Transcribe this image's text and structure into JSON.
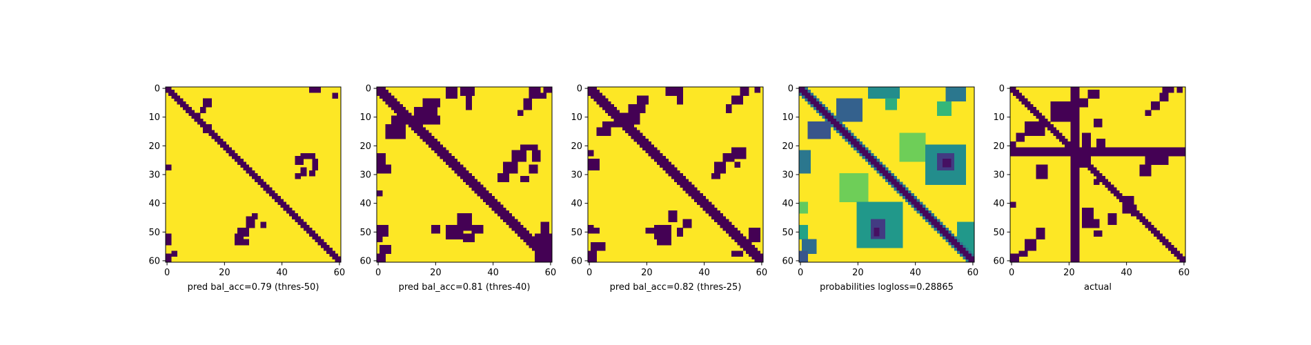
{
  "chart_data": [
    {
      "type": "heatmap",
      "style": "binary",
      "title": "",
      "xlabel": "pred bal_acc=0.79 (thres-50)",
      "ylabel": "",
      "x_ticks": [
        0,
        20,
        40,
        60
      ],
      "y_ticks": [
        0,
        10,
        20,
        30,
        40,
        50,
        60
      ],
      "xlim": [
        0,
        60
      ],
      "ylim": [
        60,
        0
      ],
      "grid": false,
      "diagonal_band_half_width": 1.4,
      "colors": {
        "low": "#440154",
        "high": "#fde725"
      },
      "regions": [
        {
          "x0": 14,
          "y0": 13,
          "x1": 16,
          "y1": 16
        },
        {
          "x0": 13,
          "y0": 15,
          "x1": 14,
          "y1": 16
        },
        {
          "x0": 13,
          "y0": 4,
          "x1": 16,
          "y1": 7
        },
        {
          "x0": 12,
          "y0": 7,
          "x1": 14,
          "y1": 9
        },
        {
          "x0": 11,
          "y0": 9,
          "x1": 12,
          "y1": 10
        },
        {
          "x0": 50,
          "y0": 0,
          "x1": 54,
          "y1": 2
        },
        {
          "x0": 58,
          "y0": 2,
          "x1": 60,
          "y1": 4
        },
        {
          "x0": 0,
          "y0": 27,
          "x1": 2,
          "y1": 29
        },
        {
          "x0": 0,
          "y0": 51,
          "x1": 2,
          "y1": 55
        },
        {
          "x0": 2,
          "y0": 57,
          "x1": 4,
          "y1": 59
        },
        {
          "x0": 0,
          "y0": 58,
          "x1": 2,
          "y1": 61
        },
        {
          "x0": 47,
          "y0": 23,
          "x1": 52,
          "y1": 25
        },
        {
          "x0": 45,
          "y0": 24,
          "x1": 48,
          "y1": 27
        },
        {
          "x0": 51,
          "y0": 25,
          "x1": 53,
          "y1": 29
        },
        {
          "x0": 50,
          "y0": 29,
          "x1": 52,
          "y1": 31
        },
        {
          "x0": 47,
          "y0": 28,
          "x1": 49,
          "y1": 31
        },
        {
          "x0": 45,
          "y0": 30,
          "x1": 47,
          "y1": 32
        },
        {
          "x0": 25,
          "y0": 49,
          "x1": 29,
          "y1": 52
        },
        {
          "x0": 24,
          "y0": 51,
          "x1": 27,
          "y1": 53
        },
        {
          "x0": 28,
          "y0": 45,
          "x1": 31,
          "y1": 49
        },
        {
          "x0": 30,
          "y0": 44,
          "x1": 32,
          "y1": 46
        },
        {
          "x0": 24,
          "y0": 53,
          "x1": 29,
          "y1": 55
        },
        {
          "x0": 33,
          "y0": 47,
          "x1": 35,
          "y1": 49
        }
      ]
    },
    {
      "type": "heatmap",
      "style": "binary",
      "title": "",
      "xlabel": "pred bal_acc=0.81 (thres-40)",
      "ylabel": "",
      "x_ticks": [
        0,
        20,
        40,
        60
      ],
      "y_ticks": [
        0,
        10,
        20,
        30,
        40,
        50,
        60
      ],
      "xlim": [
        0,
        60
      ],
      "ylim": [
        60,
        0
      ],
      "grid": false,
      "diagonal_band_half_width": 2.0,
      "colors": {
        "low": "#440154",
        "high": "#fde725"
      },
      "regions": [
        {
          "x0": 5,
          "y0": 10,
          "x1": 22,
          "y1": 13
        },
        {
          "x0": 13,
          "y0": 7,
          "x1": 21,
          "y1": 10
        },
        {
          "x0": 16,
          "y0": 4,
          "x1": 22,
          "y1": 7
        },
        {
          "x0": 3,
          "y0": 13,
          "x1": 10,
          "y1": 18
        },
        {
          "x0": 0,
          "y0": 23,
          "x1": 3,
          "y1": 27
        },
        {
          "x0": 0,
          "y0": 27,
          "x1": 5,
          "y1": 30
        },
        {
          "x0": 0,
          "y0": 36,
          "x1": 2,
          "y1": 38
        },
        {
          "x0": 0,
          "y0": 48,
          "x1": 4,
          "y1": 52
        },
        {
          "x0": 0,
          "y0": 52,
          "x1": 2,
          "y1": 54
        },
        {
          "x0": 1,
          "y0": 55,
          "x1": 5,
          "y1": 58
        },
        {
          "x0": 0,
          "y0": 58,
          "x1": 3,
          "y1": 61
        },
        {
          "x0": 24,
          "y0": 0,
          "x1": 28,
          "y1": 4
        },
        {
          "x0": 29,
          "y0": 0,
          "x1": 34,
          "y1": 3
        },
        {
          "x0": 31,
          "y0": 3,
          "x1": 33,
          "y1": 8
        },
        {
          "x0": 53,
          "y0": 0,
          "x1": 57,
          "y1": 4
        },
        {
          "x0": 51,
          "y0": 4,
          "x1": 54,
          "y1": 8
        },
        {
          "x0": 49,
          "y0": 8,
          "x1": 51,
          "y1": 10
        },
        {
          "x0": 58,
          "y0": 0,
          "x1": 61,
          "y1": 2
        },
        {
          "x0": 57,
          "y0": 2,
          "x1": 59,
          "y1": 4
        },
        {
          "x0": 50,
          "y0": 20,
          "x1": 56,
          "y1": 22
        },
        {
          "x0": 54,
          "y0": 22,
          "x1": 57,
          "y1": 26
        },
        {
          "x0": 47,
          "y0": 22,
          "x1": 52,
          "y1": 26
        },
        {
          "x0": 44,
          "y0": 26,
          "x1": 49,
          "y1": 30
        },
        {
          "x0": 42,
          "y0": 30,
          "x1": 46,
          "y1": 33
        },
        {
          "x0": 53,
          "y0": 27,
          "x1": 56,
          "y1": 30
        },
        {
          "x0": 50,
          "y0": 31,
          "x1": 53,
          "y1": 33
        },
        {
          "x0": 28,
          "y0": 44,
          "x1": 33,
          "y1": 50
        },
        {
          "x0": 24,
          "y0": 48,
          "x1": 30,
          "y1": 53
        },
        {
          "x0": 19,
          "y0": 48,
          "x1": 22,
          "y1": 51
        },
        {
          "x0": 33,
          "y0": 48,
          "x1": 37,
          "y1": 51
        },
        {
          "x0": 30,
          "y0": 51,
          "x1": 34,
          "y1": 54
        },
        {
          "x0": 57,
          "y0": 47,
          "x1": 60,
          "y1": 51
        },
        {
          "x0": 55,
          "y0": 51,
          "x1": 61,
          "y1": 61
        }
      ]
    },
    {
      "type": "heatmap",
      "style": "binary",
      "title": "",
      "xlabel": "pred bal_acc=0.82 (thres-25)",
      "ylabel": "",
      "x_ticks": [
        0,
        20,
        40,
        60
      ],
      "y_ticks": [
        0,
        10,
        20,
        30,
        40,
        50,
        60
      ],
      "xlim": [
        0,
        60
      ],
      "ylim": [
        60,
        0
      ],
      "grid": false,
      "diagonal_band_half_width": 2.2,
      "colors": {
        "low": "#440154",
        "high": "#fde725"
      },
      "regions": [
        {
          "x0": 11,
          "y0": 9,
          "x1": 18,
          "y1": 13
        },
        {
          "x0": 14,
          "y0": 6,
          "x1": 20,
          "y1": 9
        },
        {
          "x0": 17,
          "y0": 3,
          "x1": 21,
          "y1": 6
        },
        {
          "x0": 5,
          "y0": 12,
          "x1": 12,
          "y1": 14
        },
        {
          "x0": 3,
          "y0": 14,
          "x1": 8,
          "y1": 17
        },
        {
          "x0": 0,
          "y0": 22,
          "x1": 2,
          "y1": 24
        },
        {
          "x0": 0,
          "y0": 25,
          "x1": 4,
          "y1": 29
        },
        {
          "x0": 0,
          "y0": 48,
          "x1": 2,
          "y1": 51
        },
        {
          "x0": 2,
          "y0": 49,
          "x1": 4,
          "y1": 51
        },
        {
          "x0": 1,
          "y0": 54,
          "x1": 6,
          "y1": 57
        },
        {
          "x0": 0,
          "y0": 57,
          "x1": 3,
          "y1": 61
        },
        {
          "x0": 27,
          "y0": 0,
          "x1": 33,
          "y1": 3
        },
        {
          "x0": 31,
          "y0": 3,
          "x1": 33,
          "y1": 6
        },
        {
          "x0": 53,
          "y0": 0,
          "x1": 56,
          "y1": 3
        },
        {
          "x0": 50,
          "y0": 3,
          "x1": 54,
          "y1": 6
        },
        {
          "x0": 48,
          "y0": 6,
          "x1": 50,
          "y1": 9
        },
        {
          "x0": 58,
          "y0": 0,
          "x1": 60,
          "y1": 2
        },
        {
          "x0": 50,
          "y0": 21,
          "x1": 55,
          "y1": 25
        },
        {
          "x0": 47,
          "y0": 23,
          "x1": 51,
          "y1": 26
        },
        {
          "x0": 44,
          "y0": 26,
          "x1": 48,
          "y1": 30
        },
        {
          "x0": 43,
          "y0": 30,
          "x1": 46,
          "y1": 32
        },
        {
          "x0": 51,
          "y0": 26,
          "x1": 53,
          "y1": 28
        },
        {
          "x0": 28,
          "y0": 43,
          "x1": 31,
          "y1": 47
        },
        {
          "x0": 23,
          "y0": 48,
          "x1": 29,
          "y1": 53
        },
        {
          "x0": 20,
          "y0": 49,
          "x1": 23,
          "y1": 51
        },
        {
          "x0": 24,
          "y0": 53,
          "x1": 29,
          "y1": 55
        },
        {
          "x0": 33,
          "y0": 46,
          "x1": 36,
          "y1": 49
        },
        {
          "x0": 31,
          "y0": 49,
          "x1": 33,
          "y1": 52
        },
        {
          "x0": 56,
          "y0": 49,
          "x1": 60,
          "y1": 54
        },
        {
          "x0": 50,
          "y0": 57,
          "x1": 54,
          "y1": 59
        }
      ]
    },
    {
      "type": "heatmap",
      "style": "probability",
      "title": "",
      "xlabel": "probabilities logloss=0.28865",
      "ylabel": "",
      "x_ticks": [
        0,
        20,
        40,
        60
      ],
      "y_ticks": [
        0,
        10,
        20,
        30,
        40,
        50,
        60
      ],
      "xlim": [
        0,
        60
      ],
      "ylim": [
        60,
        0
      ],
      "grid": false,
      "diagonal_band_half_width": 1.6,
      "colors": {
        "low": "#440154",
        "high": "#fde725"
      },
      "regions": [
        {
          "x0": 13,
          "y0": 4,
          "x1": 22,
          "y1": 12,
          "level": 0.35
        },
        {
          "x0": 3,
          "y0": 12,
          "x1": 11,
          "y1": 18,
          "level": 0.3
        },
        {
          "x0": 0,
          "y0": 22,
          "x1": 4,
          "y1": 30,
          "level": 0.45
        },
        {
          "x0": 0,
          "y0": 40,
          "x1": 3,
          "y1": 44,
          "level": 0.85
        },
        {
          "x0": 0,
          "y0": 48,
          "x1": 3,
          "y1": 53,
          "level": 0.65
        },
        {
          "x0": 1,
          "y0": 53,
          "x1": 6,
          "y1": 58,
          "level": 0.4
        },
        {
          "x0": 0,
          "y0": 57,
          "x1": 3,
          "y1": 61,
          "level": 0.3
        },
        {
          "x0": 24,
          "y0": 0,
          "x1": 35,
          "y1": 4,
          "level": 0.55
        },
        {
          "x0": 30,
          "y0": 3,
          "x1": 34,
          "y1": 8,
          "level": 0.7
        },
        {
          "x0": 51,
          "y0": 0,
          "x1": 58,
          "y1": 5,
          "level": 0.45
        },
        {
          "x0": 48,
          "y0": 5,
          "x1": 53,
          "y1": 10,
          "level": 0.75
        },
        {
          "x0": 44,
          "y0": 20,
          "x1": 58,
          "y1": 34,
          "level": 0.55
        },
        {
          "x0": 48,
          "y0": 23,
          "x1": 54,
          "y1": 29,
          "level": 0.2
        },
        {
          "x0": 50,
          "y0": 25,
          "x1": 53,
          "y1": 28,
          "level": 0.05
        },
        {
          "x0": 20,
          "y0": 40,
          "x1": 36,
          "y1": 56,
          "level": 0.6
        },
        {
          "x0": 25,
          "y0": 46,
          "x1": 30,
          "y1": 53,
          "level": 0.2
        },
        {
          "x0": 26,
          "y0": 49,
          "x1": 28,
          "y1": 52,
          "level": 0.05
        },
        {
          "x0": 55,
          "y0": 47,
          "x1": 61,
          "y1": 58,
          "level": 0.6
        },
        {
          "x0": 35,
          "y0": 16,
          "x1": 44,
          "y1": 26,
          "level": 0.88
        },
        {
          "x0": 14,
          "y0": 30,
          "x1": 24,
          "y1": 40,
          "level": 0.88
        }
      ]
    },
    {
      "type": "heatmap",
      "style": "binary",
      "title": "",
      "xlabel": "actual",
      "ylabel": "",
      "x_ticks": [
        0,
        20,
        40,
        60
      ],
      "y_ticks": [
        0,
        10,
        20,
        30,
        40,
        50,
        60
      ],
      "xlim": [
        0,
        60
      ],
      "ylim": [
        60,
        0
      ],
      "grid": false,
      "diagonal_band_half_width": 1.5,
      "colors": {
        "low": "#440154",
        "high": "#fde725"
      },
      "regions": [
        {
          "x0": 21,
          "y0": 0,
          "x1": 24,
          "y1": 61
        },
        {
          "x0": 0,
          "y0": 21,
          "x1": 61,
          "y1": 24
        },
        {
          "x0": 14,
          "y0": 5,
          "x1": 21,
          "y1": 12
        },
        {
          "x0": 5,
          "y0": 12,
          "x1": 12,
          "y1": 17
        },
        {
          "x0": 2,
          "y0": 16,
          "x1": 5,
          "y1": 19
        },
        {
          "x0": 0,
          "y0": 19,
          "x1": 2,
          "y1": 21
        },
        {
          "x0": 27,
          "y0": 1,
          "x1": 31,
          "y1": 4
        },
        {
          "x0": 24,
          "y0": 4,
          "x1": 27,
          "y1": 7
        },
        {
          "x0": 53,
          "y0": 0,
          "x1": 57,
          "y1": 2
        },
        {
          "x0": 58,
          "y0": 0,
          "x1": 60,
          "y1": 2
        },
        {
          "x0": 52,
          "y0": 2,
          "x1": 55,
          "y1": 5
        },
        {
          "x0": 49,
          "y0": 5,
          "x1": 52,
          "y1": 8
        },
        {
          "x0": 47,
          "y0": 8,
          "x1": 49,
          "y1": 10
        },
        {
          "x0": 29,
          "y0": 11,
          "x1": 32,
          "y1": 14
        },
        {
          "x0": 25,
          "y0": 16,
          "x1": 28,
          "y1": 21
        },
        {
          "x0": 30,
          "y0": 18,
          "x1": 33,
          "y1": 21
        },
        {
          "x0": 24,
          "y0": 24,
          "x1": 28,
          "y1": 28
        },
        {
          "x0": 28,
          "y0": 28,
          "x1": 30,
          "y1": 30
        },
        {
          "x0": 47,
          "y0": 24,
          "x1": 54,
          "y1": 27
        },
        {
          "x0": 45,
          "y0": 27,
          "x1": 49,
          "y1": 31
        },
        {
          "x0": 53,
          "y0": 24,
          "x1": 55,
          "y1": 27
        },
        {
          "x0": 9,
          "y0": 27,
          "x1": 13,
          "y1": 32
        },
        {
          "x0": 29,
          "y0": 32,
          "x1": 31,
          "y1": 34
        },
        {
          "x0": 39,
          "y0": 38,
          "x1": 43,
          "y1": 44
        },
        {
          "x0": 42,
          "y0": 41,
          "x1": 44,
          "y1": 45
        },
        {
          "x0": 25,
          "y0": 42,
          "x1": 29,
          "y1": 49
        },
        {
          "x0": 28,
          "y0": 46,
          "x1": 31,
          "y1": 49
        },
        {
          "x0": 34,
          "y0": 44,
          "x1": 37,
          "y1": 48
        },
        {
          "x0": 29,
          "y0": 50,
          "x1": 32,
          "y1": 52
        },
        {
          "x0": 9,
          "y0": 49,
          "x1": 12,
          "y1": 53
        },
        {
          "x0": 5,
          "y0": 53,
          "x1": 9,
          "y1": 57
        },
        {
          "x0": 3,
          "y0": 57,
          "x1": 6,
          "y1": 59
        },
        {
          "x0": 0,
          "y0": 58,
          "x1": 3,
          "y1": 61
        },
        {
          "x0": 0,
          "y0": 40,
          "x1": 2,
          "y1": 42
        }
      ]
    }
  ]
}
